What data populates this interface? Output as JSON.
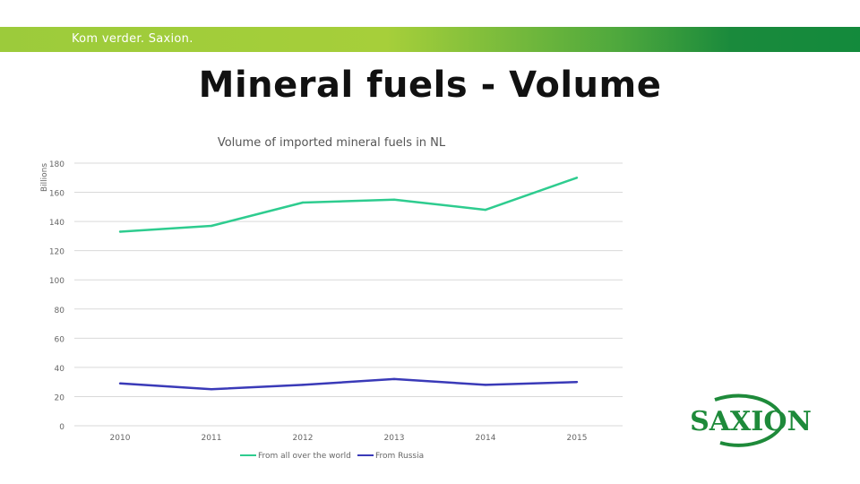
{
  "header": {
    "tagline": "Kom verder. Saxion.",
    "title": "Mineral fuels - Volume"
  },
  "logo": {
    "text": "SAXION"
  },
  "colors": {
    "series_world": "#2ecc8f",
    "series_russia": "#3a3ab8",
    "grid": "#d9d9d9",
    "axis_text": "#666666"
  },
  "chart_data": {
    "type": "line",
    "title": "Volume of imported mineral fuels in NL",
    "ylabel": "Billions",
    "xlabel": "",
    "categories": [
      "2010",
      "2011",
      "2012",
      "2013",
      "2014",
      "2015"
    ],
    "series": [
      {
        "name": "From all over the world",
        "values": [
          133,
          137,
          153,
          155,
          148,
          170
        ]
      },
      {
        "name": "From Russia",
        "values": [
          29,
          25,
          28,
          32,
          28,
          30
        ]
      }
    ],
    "yticks": [
      "0",
      "20",
      "40",
      "60",
      "80",
      "100",
      "120",
      "140",
      "160",
      "180"
    ],
    "ylim": [
      0,
      180
    ],
    "grid": true,
    "legend": "bottom"
  }
}
